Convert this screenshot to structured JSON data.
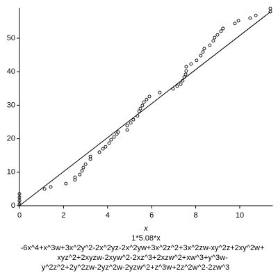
{
  "chart_data": {
    "type": "scatter",
    "xlabel": "x",
    "xlim": [
      0,
      11.5
    ],
    "ylim": [
      0,
      59
    ],
    "xticks": [
      0,
      2,
      4,
      6,
      8,
      10
    ],
    "yticks": [
      0,
      10,
      20,
      30,
      40,
      50
    ],
    "series": [
      {
        "color": "#000000",
        "x": [
          0,
          0,
          0,
          0,
          1.14,
          1.42,
          2.11,
          2.52,
          2.52,
          2.74,
          2.84,
          2.9,
          3.0,
          3.22,
          3.22,
          3.63,
          3.79,
          3.91,
          4.07,
          4.16,
          4.29,
          4.42,
          4.48,
          4.89,
          4.89,
          5.05,
          5.17,
          5.36,
          5.43,
          5.49,
          5.58,
          5.65,
          5.77,
          5.9,
          6.37,
          6.97,
          7.16,
          7.32,
          7.41,
          7.48,
          7.54,
          7.57,
          7.57,
          7.79,
          8.04,
          8.23,
          8.33,
          8.39,
          8.64,
          8.8,
          8.86,
          8.99,
          9.15,
          9.24,
          9.78,
          9.94,
          10.47,
          10.73,
          11.39,
          11.39
        ],
        "values": [
          0.5,
          1.5,
          2.5,
          3.5,
          5.0,
          5.6,
          6.6,
          7.7,
          8.5,
          9.3,
          10.4,
          11.4,
          12.4,
          13.9,
          14.7,
          16.0,
          17.0,
          17.6,
          18.7,
          19.7,
          20.5,
          21.4,
          22.0,
          22.6,
          23.9,
          24.7,
          25.7,
          26.8,
          28.2,
          29.0,
          29.9,
          30.9,
          31.7,
          32.6,
          33.8,
          34.9,
          35.7,
          36.3,
          37.3,
          38.4,
          39.2,
          40.2,
          41.5,
          42.3,
          43.4,
          44.8,
          45.9,
          46.9,
          47.9,
          49.2,
          50.2,
          51.0,
          52.1,
          52.9,
          54.4,
          55.2,
          56.0,
          56.8,
          57.9,
          58.9
        ]
      },
      {
        "name": "1*5.08*x",
        "type": "line",
        "color": "#000000",
        "x": [
          0,
          11.4
        ],
        "values": [
          0,
          57.9
        ]
      }
    ],
    "caption": [
      "-6x^4+x^3w+3x^2y^2-2x^2yz-2x^2yw+3x^2z^2+3x^2zw-xy^2z+2xy^2w+",
      "xyz^2+2xyzw-2xyw^2-2xz^3+2xzw^2+xw^3+y^3w-",
      "y^2z^2+2y^2zw-2yz^2w-2yzw^2+z^3w+2z^2w^2-2zw^3"
    ]
  }
}
